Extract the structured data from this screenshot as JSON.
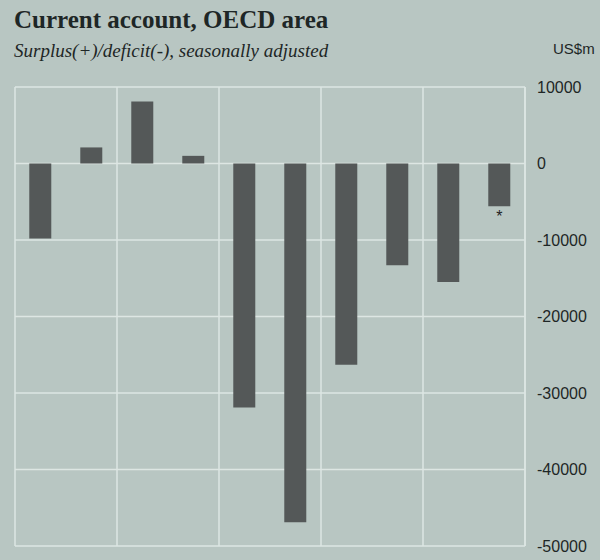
{
  "chart_data": {
    "type": "bar",
    "title": "Current account, OECD area",
    "subtitle": "Surplus(+)/deficit(-), seasonally adjusted",
    "y_label": "US$m",
    "categories": [
      null,
      null,
      null,
      null,
      null,
      null,
      null,
      null,
      null,
      null
    ],
    "values": [
      -9800,
      2100,
      8100,
      1000,
      -31900,
      -46900,
      -26300,
      -13300,
      -15500,
      -5600
    ],
    "color": "#545858",
    "ylim": [
      -50000,
      10000
    ],
    "yticks": [
      -50000,
      -40000,
      -30000,
      -20000,
      -10000,
      0,
      10000
    ],
    "grid": true,
    "annotations": [
      {
        "index": 9,
        "text": "*"
      }
    ]
  }
}
